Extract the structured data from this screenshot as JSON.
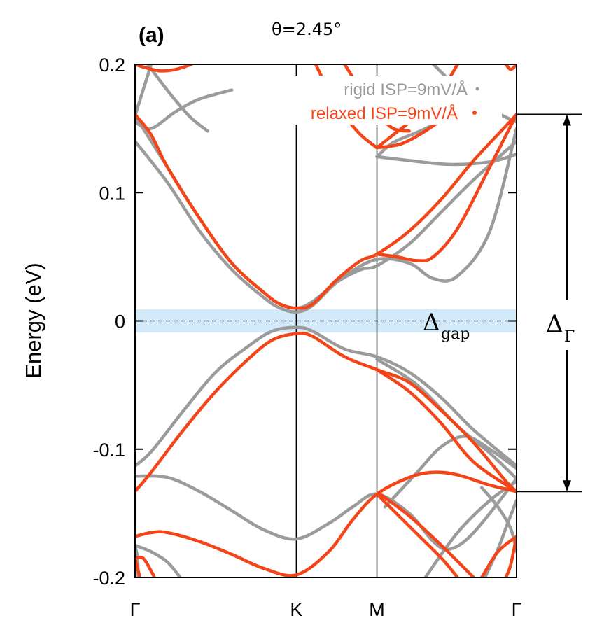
{
  "chart_data": {
    "type": "line",
    "panel_label": "(a)",
    "title": "θ=2.45°",
    "ylabel": "Energy (eV)",
    "ylim": [
      -0.2,
      0.2
    ],
    "y_ticks": [
      {
        "value": 0.2,
        "label": "0.2"
      },
      {
        "value": 0.1,
        "label": "0.1"
      },
      {
        "value": 0.0,
        "label": "0"
      },
      {
        "value": -0.1,
        "label": "-0.1"
      },
      {
        "value": -0.2,
        "label": "-0.2"
      }
    ],
    "x_ticks": [
      {
        "pos": 0.0,
        "label": "Γ"
      },
      {
        "pos": 1.0,
        "label": "K"
      },
      {
        "pos": 1.5,
        "label": "M"
      },
      {
        "pos": 2.366,
        "label": "Γ"
      }
    ],
    "fermi_level": 0.0,
    "gap_band_range": [
      -0.009,
      0.009
    ],
    "annotations": {
      "gap_symbol": "Δ",
      "gap_subscript": "gap",
      "gamma_symbol": "Δ",
      "gamma_subscript": "Γ",
      "gamma_range": [
        -0.133,
        0.161
      ]
    },
    "series": [
      {
        "name": "rigid ISP=9mV/Å",
        "color": "#9b9b9b",
        "bands": [
          [
            [
              0,
              0.155
            ],
            [
              0.1,
              0.15
            ],
            [
              0.25,
              0.163
            ],
            [
              0.4,
              0.173
            ],
            [
              0.6,
              0.18
            ]
          ],
          [
            [
              0,
              0.14
            ],
            [
              0.2,
              0.108
            ],
            [
              0.4,
              0.07
            ],
            [
              0.6,
              0.04
            ],
            [
              0.8,
              0.018
            ],
            [
              0.9,
              0.01
            ],
            [
              1.0,
              0.007
            ],
            [
              1.1,
              0.012
            ],
            [
              1.25,
              0.03
            ],
            [
              1.4,
              0.04
            ],
            [
              1.5,
              0.043
            ],
            [
              1.7,
              0.06
            ],
            [
              1.9,
              0.085
            ],
            [
              2.1,
              0.11
            ],
            [
              2.366,
              0.14
            ]
          ],
          [
            [
              0,
              0.16
            ],
            [
              0.2,
              0.12
            ],
            [
              0.4,
              0.08
            ],
            [
              0.6,
              0.045
            ],
            [
              0.8,
              0.022
            ],
            [
              0.9,
              0.013
            ],
            [
              1.0,
              0.01
            ],
            [
              1.1,
              0.015
            ],
            [
              1.3,
              0.035
            ],
            [
              1.5,
              0.048
            ],
            [
              1.7,
              0.045
            ],
            [
              1.85,
              0.033
            ],
            [
              2.0,
              0.035
            ],
            [
              2.2,
              0.07
            ],
            [
              2.366,
              0.15
            ]
          ],
          [
            [
              0,
              -0.113
            ],
            [
              0.1,
              -0.102
            ],
            [
              0.3,
              -0.07
            ],
            [
              0.5,
              -0.04
            ],
            [
              0.7,
              -0.02
            ],
            [
              0.85,
              -0.008
            ],
            [
              1.0,
              -0.005
            ],
            [
              1.1,
              -0.008
            ],
            [
              1.3,
              -0.022
            ],
            [
              1.5,
              -0.028
            ],
            [
              1.7,
              -0.04
            ],
            [
              1.9,
              -0.06
            ],
            [
              2.1,
              -0.085
            ],
            [
              2.366,
              -0.113
            ]
          ],
          [
            [
              0,
              -0.121
            ],
            [
              0.2,
              -0.122
            ],
            [
              0.4,
              -0.133
            ],
            [
              0.6,
              -0.148
            ],
            [
              0.8,
              -0.163
            ],
            [
              1.0,
              -0.17
            ],
            [
              1.2,
              -0.158
            ],
            [
              1.35,
              -0.145
            ],
            [
              1.5,
              -0.135
            ],
            [
              1.7,
              -0.15
            ],
            [
              1.85,
              -0.172
            ],
            [
              1.95,
              -0.178
            ],
            [
              2.1,
              -0.165
            ],
            [
              2.366,
              -0.123
            ]
          ],
          [
            [
              1.5,
              -0.03
            ],
            [
              1.75,
              -0.05
            ],
            [
              2.0,
              -0.082
            ],
            [
              2.2,
              -0.103
            ],
            [
              2.366,
              -0.123
            ]
          ],
          [
            [
              1.55,
              -0.145
            ],
            [
              1.75,
              -0.118
            ],
            [
              1.9,
              -0.098
            ],
            [
              2.05,
              -0.09
            ],
            [
              2.2,
              -0.1
            ],
            [
              2.366,
              -0.115
            ]
          ],
          [
            [
              1.5,
              0.128
            ],
            [
              1.7,
              0.125
            ],
            [
              1.95,
              0.122
            ],
            [
              2.2,
              0.124
            ],
            [
              2.366,
              0.13
            ]
          ],
          [
            [
              1.5,
              0.128
            ],
            [
              1.6,
              0.139
            ],
            [
              1.75,
              0.147
            ],
            [
              1.9,
              0.155
            ],
            [
              2.1,
              0.16
            ]
          ],
          [
            [
              1.85,
              0.2
            ],
            [
              2.0,
              0.182
            ],
            [
              2.15,
              0.168
            ],
            [
              2.28,
              0.16
            ],
            [
              2.366,
              0.155
            ]
          ],
          [
            [
              2.366,
              -0.18
            ],
            [
              2.33,
              -0.162
            ],
            [
              2.25,
              -0.145
            ],
            [
              2.15,
              -0.13
            ]
          ],
          [
            [
              2.17,
              -0.2
            ],
            [
              2.25,
              -0.178
            ],
            [
              2.31,
              -0.158
            ],
            [
              2.366,
              -0.14
            ]
          ],
          [
            [
              1.8,
              -0.2
            ],
            [
              2.0,
              -0.165
            ],
            [
              2.2,
              -0.14
            ],
            [
              2.366,
              -0.125
            ]
          ],
          [
            [
              0.02,
              -0.2
            ],
            [
              0.015,
              -0.185
            ],
            [
              0.0,
              -0.175
            ]
          ],
          [
            [
              0.28,
              -0.2
            ],
            [
              0.2,
              -0.188
            ],
            [
              0.1,
              -0.18
            ],
            [
              0.0,
              -0.175
            ]
          ],
          [
            [
              0.08,
              0.2
            ],
            [
              0.15,
              0.188
            ],
            [
              0.25,
              0.172
            ],
            [
              0.35,
              0.158
            ],
            [
              0.45,
              0.148
            ]
          ],
          [
            [
              0.1,
              0.2
            ],
            [
              0.05,
              0.18
            ],
            [
              0.0,
              0.16
            ]
          ]
        ]
      },
      {
        "name": "relaxed ISP=9mV/Å",
        "color": "#f44518",
        "bands": [
          [
            [
              0,
              0.161
            ],
            [
              0.1,
              0.145
            ],
            [
              0.2,
              0.12
            ],
            [
              0.4,
              0.08
            ],
            [
              0.6,
              0.045
            ],
            [
              0.8,
              0.022
            ],
            [
              0.9,
              0.013
            ],
            [
              1.0,
              0.01
            ],
            [
              1.1,
              0.013
            ],
            [
              1.25,
              0.032
            ],
            [
              1.4,
              0.047
            ],
            [
              1.5,
              0.052
            ],
            [
              1.7,
              0.07
            ],
            [
              1.9,
              0.095
            ],
            [
              2.1,
              0.125
            ],
            [
              2.3,
              0.152
            ],
            [
              2.366,
              0.161
            ]
          ],
          [
            [
              1.5,
              0.052
            ],
            [
              1.62,
              0.05
            ],
            [
              1.75,
              0.047
            ],
            [
              1.85,
              0.05
            ],
            [
              2.0,
              0.072
            ],
            [
              2.2,
              0.12
            ],
            [
              2.366,
              0.161
            ]
          ],
          [
            [
              0,
              -0.133
            ],
            [
              0.1,
              -0.118
            ],
            [
              0.3,
              -0.085
            ],
            [
              0.5,
              -0.055
            ],
            [
              0.7,
              -0.03
            ],
            [
              0.85,
              -0.015
            ],
            [
              1.0,
              -0.01
            ],
            [
              1.1,
              -0.012
            ],
            [
              1.3,
              -0.028
            ],
            [
              1.5,
              -0.038
            ],
            [
              1.7,
              -0.048
            ],
            [
              1.9,
              -0.07
            ],
            [
              2.1,
              -0.095
            ],
            [
              2.3,
              -0.125
            ],
            [
              2.366,
              -0.133
            ]
          ],
          [
            [
              1.5,
              -0.038
            ],
            [
              1.7,
              -0.055
            ],
            [
              1.9,
              -0.08
            ],
            [
              2.1,
              -0.11
            ],
            [
              2.366,
              -0.133
            ]
          ],
          [
            [
              0,
              -0.168
            ],
            [
              0.1,
              -0.165
            ],
            [
              0.2,
              -0.165
            ],
            [
              0.4,
              -0.172
            ],
            [
              0.6,
              -0.182
            ],
            [
              0.8,
              -0.193
            ],
            [
              1.0,
              -0.198
            ],
            [
              1.2,
              -0.18
            ],
            [
              1.35,
              -0.155
            ],
            [
              1.5,
              -0.135
            ],
            [
              1.7,
              -0.122
            ],
            [
              1.85,
              -0.118
            ],
            [
              2.0,
              -0.12
            ],
            [
              2.2,
              -0.128
            ],
            [
              2.366,
              -0.133
            ]
          ],
          [
            [
              1.5,
              -0.135
            ],
            [
              1.7,
              -0.16
            ],
            [
              1.9,
              -0.185
            ],
            [
              2.0,
              -0.2
            ]
          ],
          [
            [
              1.52,
              -0.135
            ],
            [
              1.7,
              -0.152
            ],
            [
              1.9,
              -0.175
            ],
            [
              2.1,
              -0.2
            ]
          ],
          [
            [
              2.366,
              -0.168
            ],
            [
              2.25,
              -0.18
            ],
            [
              2.15,
              -0.2
            ]
          ],
          [
            [
              2.366,
              -0.168
            ],
            [
              2.33,
              -0.19
            ],
            [
              2.3,
              -0.2
            ]
          ],
          [
            [
              0,
              -0.185
            ],
            [
              0.03,
              -0.2
            ]
          ],
          [
            [
              0.12,
              -0.2
            ],
            [
              0.1,
              -0.195
            ],
            [
              0.05,
              -0.185
            ],
            [
              0.0,
              -0.185
            ]
          ],
          [
            [
              1.5,
              0.135
            ],
            [
              1.65,
              0.138
            ],
            [
              1.8,
              0.148
            ],
            [
              1.95,
              0.162
            ],
            [
              2.05,
              0.175
            ]
          ],
          [
            [
              1.5,
              0.135
            ],
            [
              1.4,
              0.145
            ],
            [
              1.3,
              0.16
            ],
            [
              1.2,
              0.18
            ],
            [
              1.12,
              0.2
            ]
          ],
          [
            [
              1.5,
              0.135
            ],
            [
              1.6,
              0.145
            ],
            [
              1.75,
              0.16
            ],
            [
              1.9,
              0.18
            ],
            [
              2.0,
              0.2
            ]
          ],
          [
            [
              1.3,
              0.2
            ],
            [
              1.4,
              0.18
            ],
            [
              1.5,
              0.162
            ],
            [
              1.6,
              0.15
            ],
            [
              1.7,
              0.148
            ]
          ],
          [
            [
              0,
              0.2
            ],
            [
              0.05,
              0.198
            ],
            [
              0.15,
              0.195
            ],
            [
              0.25,
              0.196
            ],
            [
              0.35,
              0.2
            ]
          ],
          [
            [
              2.366,
              0.2
            ],
            [
              2.33,
              0.196
            ],
            [
              2.3,
              0.2
            ]
          ]
        ]
      }
    ],
    "legend": {
      "placement": "top-right"
    }
  }
}
